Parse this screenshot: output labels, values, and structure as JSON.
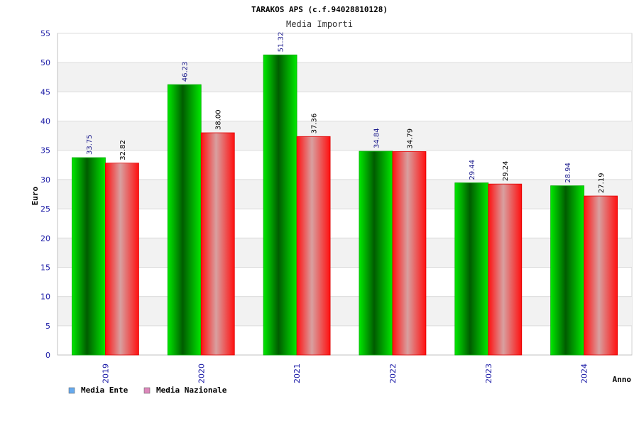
{
  "chart_data": {
    "type": "bar",
    "title": "TARAKOS APS (c.f.94028810128)",
    "subtitle": "Media Importi",
    "xlabel": "Anno",
    "ylabel": "Euro",
    "categories": [
      "2019",
      "2020",
      "2021",
      "2022",
      "2023",
      "2024"
    ],
    "ylim": [
      0,
      55
    ],
    "yticks": [
      0,
      5,
      10,
      15,
      20,
      25,
      30,
      35,
      40,
      45,
      50,
      55
    ],
    "grid": true,
    "legend_position": "bottom-left",
    "series": [
      {
        "name": "Media Ente",
        "values": [
          33.75,
          46.23,
          51.32,
          34.84,
          29.44,
          28.94
        ],
        "labels": [
          "33.75",
          "46.23",
          "51.32",
          "34.84",
          "29.44",
          "28.94"
        ],
        "color": "#00cc00",
        "label_color": "#1a1a8c",
        "legend_color": "#66aaee"
      },
      {
        "name": "Media Nazionale",
        "values": [
          32.82,
          38.0,
          37.36,
          34.79,
          29.24,
          27.19
        ],
        "labels": [
          "32.82",
          "38.00",
          "37.36",
          "34.79",
          "29.24",
          "27.19"
        ],
        "color": "#ff0000",
        "label_color": "#000000",
        "legend_color": "#dd88bb"
      }
    ]
  }
}
